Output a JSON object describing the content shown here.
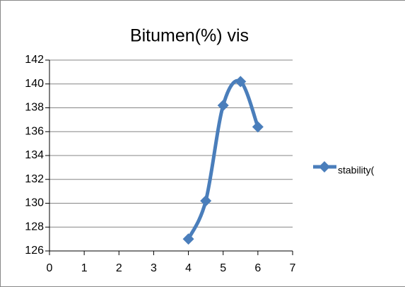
{
  "chart_data": {
    "type": "line",
    "title": "Bitumen(%) vis",
    "x": [
      4,
      4.5,
      5,
      5.5,
      6
    ],
    "series": [
      {
        "name": "stability(",
        "color": "#4a7ebb",
        "values": [
          127,
          130.2,
          138.2,
          140.2,
          136.4
        ]
      }
    ],
    "xlim": [
      0,
      7
    ],
    "xticks": [
      0,
      1,
      2,
      3,
      4,
      5,
      6,
      7
    ],
    "ylim": [
      126,
      142
    ],
    "yticks": [
      126,
      128,
      130,
      132,
      134,
      136,
      138,
      140,
      142
    ],
    "grid": true,
    "smooth": true,
    "legend": "right"
  }
}
